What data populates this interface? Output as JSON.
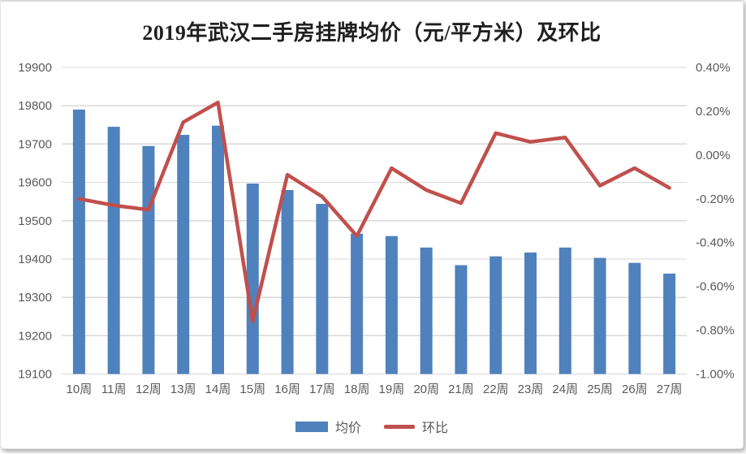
{
  "colors": {
    "bar": "#4F81BD",
    "line": "#C0504D",
    "grid": "#D9D9D9",
    "tick_text": "#595959",
    "title_text": "#1f1f1f",
    "background": "#FFFFFF"
  },
  "chart_data": {
    "type": "combo-bar-line",
    "title": "2019年武汉二手房挂牌均价（元/平方米）及环比",
    "categories": [
      "10周",
      "11周",
      "12周",
      "13周",
      "14周",
      "15周",
      "16周",
      "17周",
      "18周",
      "19周",
      "20周",
      "21周",
      "22周",
      "23周",
      "24周",
      "25周",
      "26周",
      "27周"
    ],
    "series": [
      {
        "name": "均价",
        "type": "bar",
        "axis": "left",
        "color": "#4F81BD",
        "values": [
          19790,
          19745,
          19695,
          19724,
          19748,
          19597,
          19580,
          19544,
          19466,
          19460,
          19430,
          19384,
          19407,
          19417,
          19430,
          19403,
          19390,
          19362
        ]
      },
      {
        "name": "环比",
        "type": "line",
        "axis": "right",
        "color": "#C0504D",
        "unit": "%",
        "values": [
          -0.2,
          -0.23,
          -0.25,
          0.15,
          0.24,
          -0.76,
          -0.09,
          -0.19,
          -0.37,
          -0.06,
          -0.16,
          -0.22,
          0.1,
          0.06,
          0.08,
          -0.14,
          -0.06,
          -0.15
        ]
      }
    ],
    "left_axis": {
      "min": 19100,
      "max": 19900,
      "step": 100,
      "tick_labels": [
        "19900",
        "19800",
        "19700",
        "19600",
        "19500",
        "19400",
        "19300",
        "19200",
        "19100"
      ]
    },
    "right_axis": {
      "min": -1.0,
      "max": 0.4,
      "step": 0.2,
      "tick_labels": [
        "0.40%",
        "0.20%",
        "0.00%",
        "-0.20%",
        "-0.40%",
        "-0.60%",
        "-0.80%",
        "-1.00%"
      ]
    },
    "grid": true,
    "legend_position": "bottom"
  }
}
